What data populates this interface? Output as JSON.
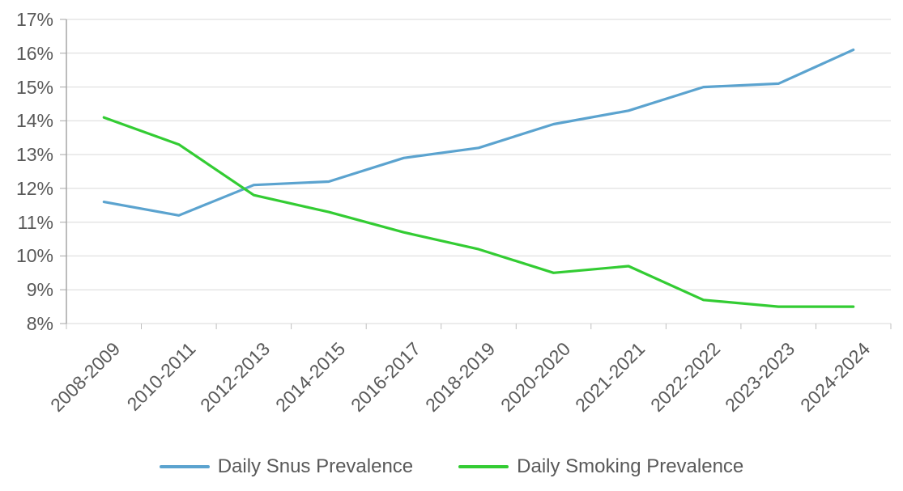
{
  "chart_data": {
    "type": "line",
    "categories": [
      "2008-2009",
      "2010-2011",
      "2012-2013",
      "2014-2015",
      "2016-2017",
      "2018-2019",
      "2020-2020",
      "2021-2021",
      "2022-2022",
      "2023-2023",
      "2024-2024"
    ],
    "series": [
      {
        "name": "Daily Snus Prevalence",
        "color": "#5BA3CF",
        "values": [
          11.6,
          11.2,
          12.1,
          12.2,
          12.9,
          13.2,
          13.9,
          14.3,
          15.0,
          15.1,
          16.1
        ]
      },
      {
        "name": "Daily Smoking Prevalence",
        "color": "#33CC33",
        "values": [
          14.1,
          13.3,
          11.8,
          11.3,
          10.7,
          10.2,
          9.5,
          9.7,
          8.7,
          8.5,
          8.5
        ]
      }
    ],
    "ylim": [
      8,
      17
    ],
    "y_tick_step": 1,
    "y_tick_labels": [
      "8%",
      "9%",
      "10%",
      "11%",
      "12%",
      "13%",
      "14%",
      "15%",
      "16%",
      "17%"
    ],
    "grid": true,
    "legend_position": "bottom",
    "xlabel": "",
    "ylabel": ""
  },
  "colors": {
    "background": "#FFFFFF",
    "grid": "#D9D9D9",
    "axis": "#A6A6A6",
    "tick": "#BFBFBF",
    "text": "#595959"
  }
}
